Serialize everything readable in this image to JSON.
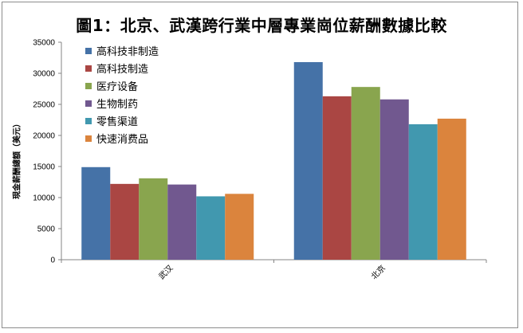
{
  "chart_data": {
    "type": "bar",
    "title": "圖1：北京、武漢跨行業中層專業崗位薪酬數據比較",
    "ylabel": "現金薪酬總額（美元）",
    "xlabel": "",
    "ylim": [
      0,
      35000
    ],
    "yticks": [
      "0",
      "5000",
      "10000",
      "15000",
      "20000",
      "25000",
      "30000",
      "35000"
    ],
    "categories": [
      "武汉",
      "北京"
    ],
    "series": [
      {
        "name": "高科技非制造",
        "color": "#4572a7",
        "values": [
          14900,
          31800
        ]
      },
      {
        "name": "高科技制造",
        "color": "#aa4643",
        "values": [
          12200,
          26300
        ]
      },
      {
        "name": "医疗设备",
        "color": "#89a54e",
        "values": [
          13100,
          27800
        ]
      },
      {
        "name": "生物制药",
        "color": "#71588f",
        "values": [
          12100,
          25800
        ]
      },
      {
        "name": "零售渠道",
        "color": "#4198af",
        "values": [
          10200,
          21800
        ]
      },
      {
        "name": "快速消费品",
        "color": "#db843d",
        "values": [
          10600,
          22700
        ]
      }
    ],
    "grid": false,
    "legend_position": "top-left"
  }
}
